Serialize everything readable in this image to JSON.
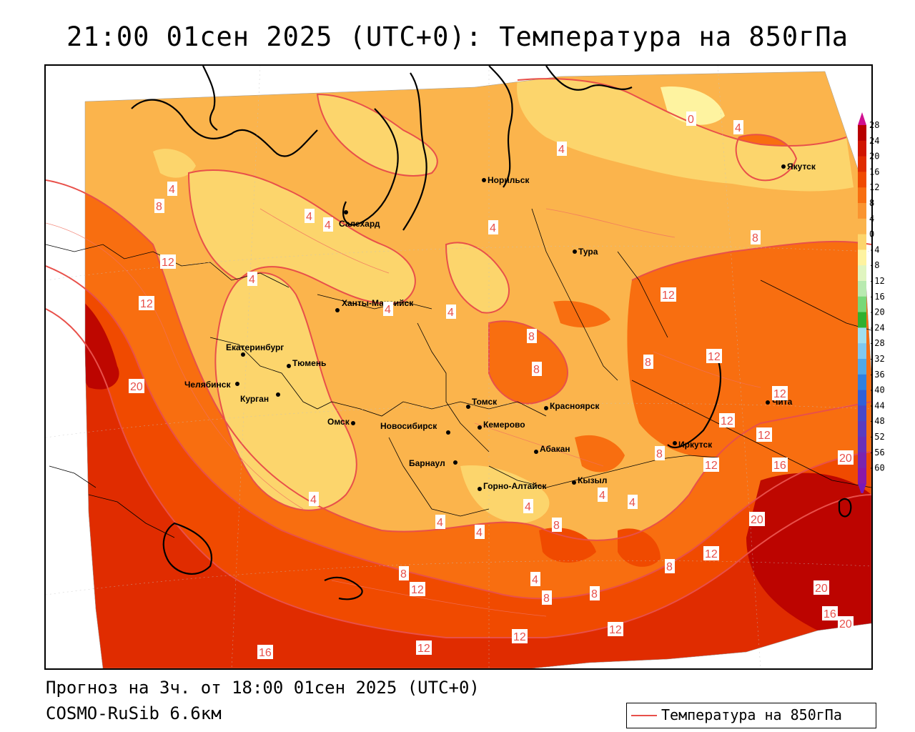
{
  "header": {
    "title": "21:00 01сен 2025 (UTC+0): Температура на 850гПа"
  },
  "footer": {
    "forecast": "Прогноз на 3ч. от 18:00 01сен 2025 (UTC+0)",
    "model": "COSMO-RuSib 6.6км"
  },
  "legend": {
    "label": "Температура на 850гПа",
    "line_color": "#e8504a"
  },
  "colorbar": {
    "labels": [
      "28",
      "24",
      "20",
      "16",
      "12",
      "8",
      "4",
      "0",
      "-4",
      "-8",
      "-12",
      "-16",
      "-20",
      "-24",
      "-28",
      "-32",
      "-36",
      "-40",
      "-44",
      "-48",
      "-52",
      "-56",
      "-60"
    ],
    "colors": [
      "#b80000",
      "#d01400",
      "#e02c00",
      "#f04a00",
      "#f86e10",
      "#fa9430",
      "#fbb44c",
      "#fcd56c",
      "#fef3a0",
      "#e0f5c0",
      "#b8eab0",
      "#78d878",
      "#30b030",
      "#a0e0f0",
      "#80c8f0",
      "#50a8e8",
      "#3080e0",
      "#3060d8",
      "#4848c8",
      "#5a3cc0",
      "#6a30b8",
      "#7a24b0",
      "#8a18a8"
    ],
    "top_arrow_color": "#d01090",
    "bottom_arrow_color": "#7a18b8"
  },
  "cities": [
    {
      "name": "Норильск"
    },
    {
      "name": "Якутск"
    },
    {
      "name": "Салехард"
    },
    {
      "name": "Тура"
    },
    {
      "name": "Ханты-Мансийск"
    },
    {
      "name": "Екатеринбург"
    },
    {
      "name": "Тюмень"
    },
    {
      "name": "Челябинск"
    },
    {
      "name": "Курган"
    },
    {
      "name": "Омск"
    },
    {
      "name": "Новосибирск"
    },
    {
      "name": "Томск"
    },
    {
      "name": "Кемерово"
    },
    {
      "name": "Красноярск"
    },
    {
      "name": "Барнаул"
    },
    {
      "name": "Абакан"
    },
    {
      "name": "Горно-Алтайск"
    },
    {
      "name": "Кызыл"
    },
    {
      "name": "Иркутск"
    },
    {
      "name": "Чита"
    }
  ],
  "isolines": [
    {
      "value": "0"
    },
    {
      "value": "4"
    },
    {
      "value": "4"
    },
    {
      "value": "4"
    },
    {
      "value": "4"
    },
    {
      "value": "4"
    },
    {
      "value": "4"
    },
    {
      "value": "4"
    },
    {
      "value": "4"
    },
    {
      "value": "4"
    },
    {
      "value": "4"
    },
    {
      "value": "4"
    },
    {
      "value": "4"
    },
    {
      "value": "4"
    },
    {
      "value": "4"
    },
    {
      "value": "4"
    },
    {
      "value": "4"
    },
    {
      "value": "8"
    },
    {
      "value": "8"
    },
    {
      "value": "8"
    },
    {
      "value": "8"
    },
    {
      "value": "8"
    },
    {
      "value": "8"
    },
    {
      "value": "8"
    },
    {
      "value": "8"
    },
    {
      "value": "8"
    },
    {
      "value": "8"
    },
    {
      "value": "8"
    },
    {
      "value": "12"
    },
    {
      "value": "12"
    },
    {
      "value": "12"
    },
    {
      "value": "12"
    },
    {
      "value": "12"
    },
    {
      "value": "12"
    },
    {
      "value": "12"
    },
    {
      "value": "12"
    },
    {
      "value": "12"
    },
    {
      "value": "12"
    },
    {
      "value": "12"
    },
    {
      "value": "12"
    },
    {
      "value": "12"
    },
    {
      "value": "12"
    },
    {
      "value": "16"
    },
    {
      "value": "16"
    },
    {
      "value": "16"
    },
    {
      "value": "16"
    },
    {
      "value": "20"
    },
    {
      "value": "20"
    },
    {
      "value": "20"
    },
    {
      "value": "20"
    },
    {
      "value": "20"
    }
  ]
}
